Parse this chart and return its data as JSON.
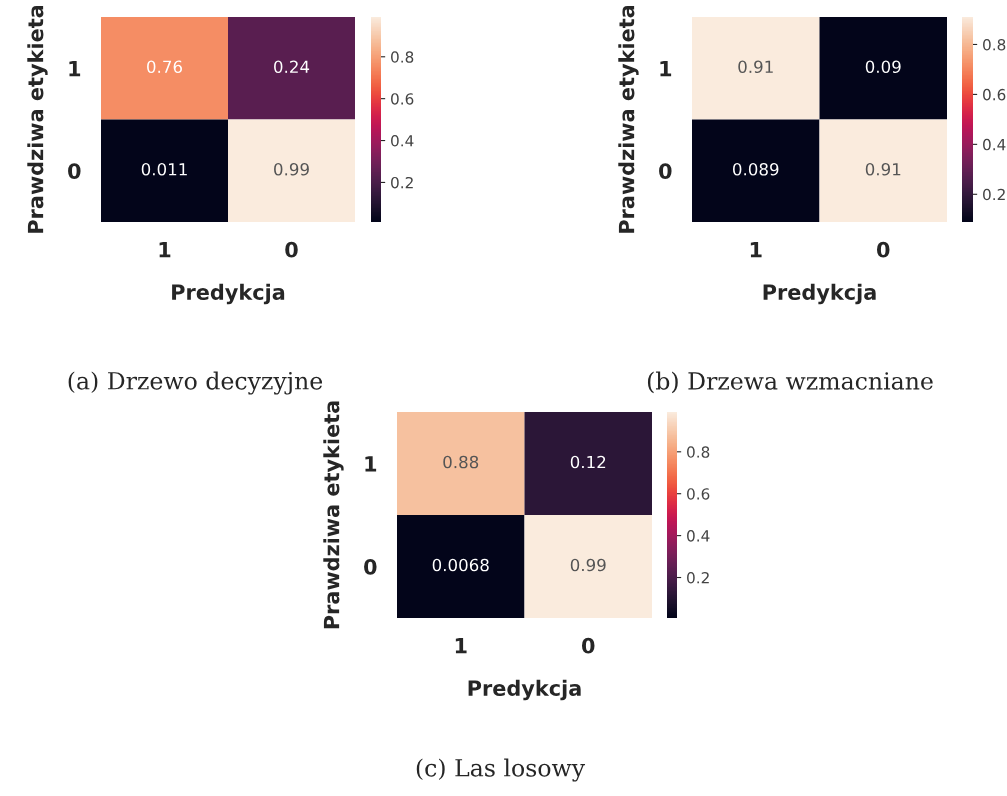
{
  "chart_data": [
    {
      "type": "heatmap",
      "xlabel": "Predykcja",
      "ylabel": "Prawdziwa etykieta",
      "categories": [
        "1",
        "0"
      ],
      "y_categories": [
        "1",
        "0"
      ],
      "cells": [
        [
          0.76,
          0.24
        ],
        [
          0.011,
          0.99
        ]
      ],
      "data_labels": true,
      "clim": [
        0.011,
        0.99
      ],
      "cticks": [
        0.2,
        0.4,
        0.6,
        0.8
      ],
      "annotations": [
        "(a) Drzewo decyzyjne"
      ]
    },
    {
      "type": "heatmap",
      "xlabel": "Predykcja",
      "ylabel": "Prawdziwa etykieta",
      "categories": [
        "1",
        "0"
      ],
      "y_categories": [
        "1",
        "0"
      ],
      "cells": [
        [
          0.91,
          0.09
        ],
        [
          0.089,
          0.91
        ]
      ],
      "data_labels": true,
      "clim": [
        0.089,
        0.91
      ],
      "cticks": [
        0.2,
        0.4,
        0.6,
        0.8
      ],
      "annotations": [
        "(b) Drzewa wzmacniane"
      ]
    },
    {
      "type": "heatmap",
      "xlabel": "Predykcja",
      "ylabel": "Prawdziwa etykieta",
      "categories": [
        "1",
        "0"
      ],
      "y_categories": [
        "1",
        "0"
      ],
      "cells": [
        [
          0.88,
          0.12
        ],
        [
          0.0068,
          0.99
        ]
      ],
      "data_labels": true,
      "clim": [
        0.0068,
        0.99
      ],
      "cticks": [
        0.2,
        0.4,
        0.6,
        0.8
      ],
      "annotations": [
        "(c) Las losowy"
      ]
    }
  ]
}
